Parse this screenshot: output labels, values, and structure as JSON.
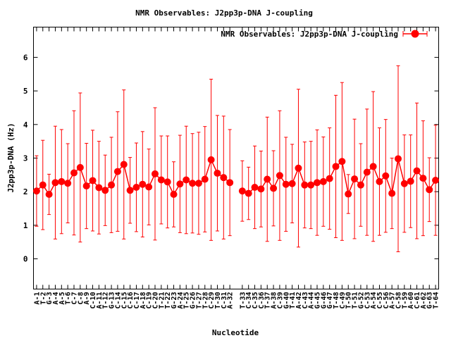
{
  "chart_data": {
    "type": "line",
    "title": "NMR Observables: J2pp3p-DNA J-coupling",
    "xlabel": "Nucleotide",
    "ylabel": "J2pp3p-DNA (Hz)",
    "ylim": [
      -0.9,
      6.9
    ],
    "yticks": [
      0,
      1,
      2,
      3,
      4,
      5,
      6
    ],
    "grid": false,
    "legend_position": "top-right",
    "series_color": "#ff0000",
    "categories": [
      "A-1",
      "T-2",
      "G-3",
      "A-4",
      "A-5",
      "T-6",
      "C-7",
      "C-8",
      "A-9",
      "C-10",
      "A-11",
      "T-12",
      "G-13",
      "C-14",
      "C-15",
      "C-16",
      "C-17",
      "A-18",
      "C-19",
      "C-20",
      "T-21",
      "T-22",
      "G-23",
      "A-24",
      "T-25",
      "G-26",
      "T-27",
      "T-28",
      "C-29",
      "T-30",
      "C-31",
      "A-32",
      "",
      "T-33",
      "C-34",
      "C-35",
      "C-36",
      "T-37",
      "A-38",
      "C-39",
      "G-40",
      "T-41",
      "A-42",
      "C-43",
      "A-44",
      "G-45",
      "G-46",
      "G-47",
      "T-48",
      "C-49",
      "T-50",
      "T-51",
      "G-52",
      "C-53",
      "A-54",
      "C-55",
      "C-56",
      "A-57",
      "C-58",
      "T-59",
      "A-60",
      "C-61",
      "A-62",
      "G-63",
      "T-64"
    ],
    "series": [
      {
        "name": "NMR Observables: J2pp3p-DNA J-coupling",
        "segments": [
          {
            "x": [
              1,
              2,
              3,
              4,
              5,
              6,
              7,
              8,
              9,
              10,
              11,
              12,
              13,
              14,
              15,
              16,
              17,
              18,
              19,
              20,
              21,
              22,
              23,
              24,
              25,
              26,
              27,
              28,
              29,
              30,
              31,
              32
            ],
            "values": [
              2.02,
              2.2,
              1.92,
              2.27,
              2.3,
              2.25,
              2.56,
              2.72,
              2.17,
              2.33,
              2.12,
              2.04,
              2.2,
              2.6,
              2.81,
              2.04,
              2.13,
              2.22,
              2.14,
              2.53,
              2.35,
              2.29,
              1.92,
              2.23,
              2.35,
              2.25,
              2.25,
              2.37,
              2.95,
              2.55,
              2.42,
              2.27
            ],
            "err": [
              1.05,
              1.33,
              0.6,
              1.68,
              1.55,
              1.18,
              1.85,
              2.22,
              1.27,
              1.5,
              1.38,
              1.05,
              1.42,
              1.78,
              2.22,
              0.98,
              1.32,
              1.57,
              1.13,
              1.97,
              1.31,
              1.37,
              0.97,
              1.45,
              1.6,
              1.48,
              1.52,
              1.57,
              2.4,
              1.72,
              1.83,
              1.58
            ]
          },
          {
            "x": [
              34,
              35,
              36,
              37,
              38,
              39,
              40,
              41,
              42,
              43,
              44,
              45,
              46,
              47,
              48,
              49,
              50,
              51,
              52,
              53,
              54,
              55,
              56,
              57,
              58,
              59,
              60,
              61,
              62,
              63,
              64,
              65
            ],
            "values": [
              2.02,
              1.95,
              2.13,
              2.08,
              2.37,
              2.1,
              2.48,
              2.22,
              2.24,
              2.7,
              2.2,
              2.2,
              2.27,
              2.3,
              2.39,
              2.75,
              2.9,
              1.93,
              2.38,
              2.2,
              2.58,
              2.75,
              2.3,
              2.47,
              1.95,
              2.98,
              2.24,
              2.31,
              2.62,
              2.4,
              2.06,
              2.34
            ],
            "err": [
              0.9,
              0.78,
              1.23,
              1.13,
              1.85,
              1.12,
              1.93,
              1.4,
              1.17,
              2.35,
              1.28,
              1.3,
              1.57,
              1.33,
              1.51,
              2.12,
              2.35,
              0.58,
              1.78,
              1.23,
              1.88,
              2.23,
              1.6,
              1.68,
              1.05,
              2.77,
              1.45,
              1.38,
              2.02,
              1.71,
              0.95,
              1.64
            ]
          }
        ]
      }
    ]
  }
}
